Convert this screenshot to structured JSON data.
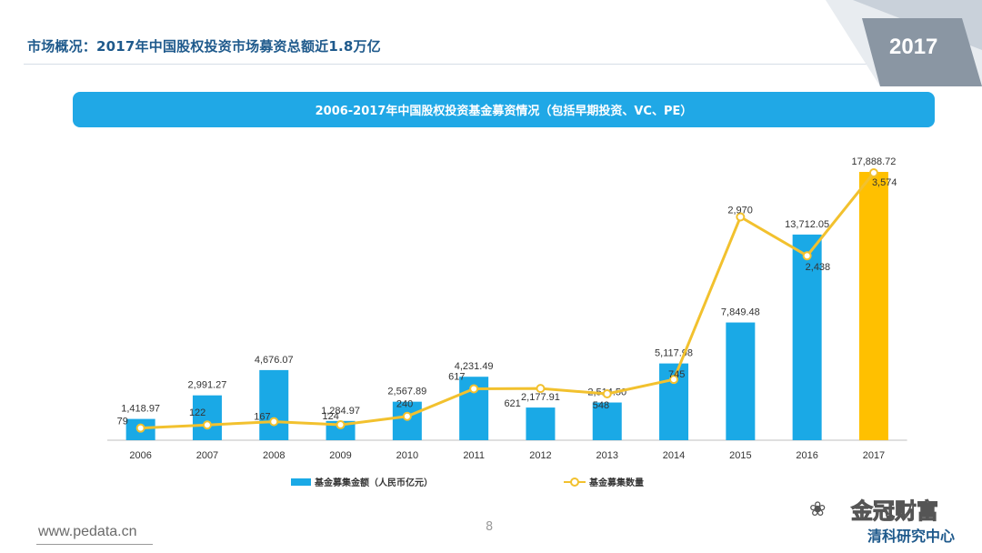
{
  "header": {
    "title": "市场概况：2017年中国股权投资市场募资总额近1.8万亿",
    "year_tag": "2017"
  },
  "banner": {
    "title": "2006-2017年中国股权投资基金募资情况（包括早期投资、VC、PE）"
  },
  "chart_data": {
    "type": "bar",
    "categories": [
      "2006",
      "2007",
      "2008",
      "2009",
      "2010",
      "2011",
      "2012",
      "2013",
      "2014",
      "2015",
      "2016",
      "2017"
    ],
    "series": [
      {
        "name": "基金募集金额（人民币亿元）",
        "kind": "bar",
        "color": "#1aa9e6",
        "highlight_color": "#ffc000",
        "highlight_index": 11,
        "values": [
          1418.97,
          2991.27,
          4676.07,
          1284.97,
          2567.89,
          4231.49,
          2177.91,
          2514.5,
          5117.98,
          7849.48,
          13712.05,
          17888.72
        ],
        "labels": [
          "1,418.97",
          "2,991.27",
          "4,676.07",
          "1,284.97",
          "2,567.89",
          "4,231.49",
          "2,177.91",
          "2,514.50",
          "5,117.98",
          "7,849.48",
          "13,712.05",
          "17,888.72"
        ]
      },
      {
        "name": "基金募集数量",
        "kind": "line",
        "color": "#f2c12e",
        "values": [
          79,
          122,
          167,
          124,
          240,
          617,
          621,
          548,
          745,
          2970,
          2438,
          3574
        ],
        "labels": [
          "79",
          "122",
          "167",
          "124",
          "240",
          "617",
          "621",
          "548",
          "745",
          "2,970",
          "2,438",
          "3,574"
        ]
      }
    ],
    "bar_ylim": [
      0,
      20000
    ],
    "line_ylim": [
      0,
      4000
    ],
    "legend_position": "bottom",
    "grid": false
  },
  "footer": {
    "url": "www.pedata.cn",
    "page": "8"
  },
  "watermark": {
    "line1": "金冠财富",
    "line2": "清科研究中心"
  }
}
